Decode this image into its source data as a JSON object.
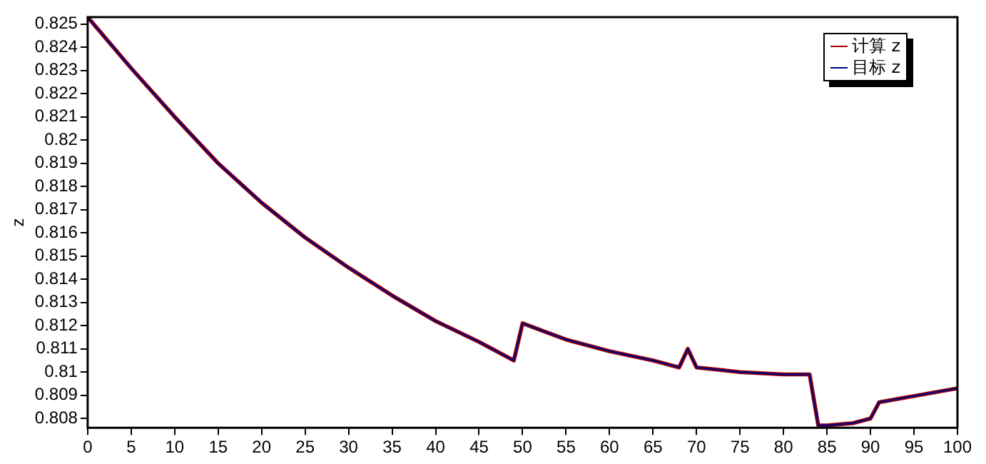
{
  "chart_data": {
    "type": "line",
    "ylabel": "z",
    "x": [
      0,
      5,
      10,
      15,
      20,
      25,
      30,
      35,
      40,
      45,
      49,
      50,
      55,
      60,
      65,
      68,
      69,
      70,
      75,
      80,
      83,
      84,
      85,
      88,
      90,
      91,
      100
    ],
    "series": [
      {
        "name": "计算 z",
        "color": "#a00000",
        "values": [
          0.8253,
          0.8231,
          0.821,
          0.819,
          0.8173,
          0.8158,
          0.8145,
          0.8133,
          0.8122,
          0.8113,
          0.8105,
          0.8121,
          0.8114,
          0.8109,
          0.8105,
          0.8102,
          0.811,
          0.8102,
          0.81,
          0.8099,
          0.8099,
          0.8077,
          0.8077,
          0.8078,
          0.808,
          0.8087,
          0.8093
        ]
      },
      {
        "name": "目标 z",
        "color": "#000080",
        "values": [
          0.8253,
          0.8231,
          0.821,
          0.819,
          0.8173,
          0.8158,
          0.8145,
          0.8133,
          0.8122,
          0.8113,
          0.8105,
          0.8121,
          0.8114,
          0.8109,
          0.8105,
          0.8102,
          0.811,
          0.8102,
          0.81,
          0.8099,
          0.8099,
          0.8077,
          0.8077,
          0.8078,
          0.808,
          0.8087,
          0.8093
        ]
      }
    ],
    "xlim": [
      0,
      100
    ],
    "xticks": [
      0,
      5,
      10,
      15,
      20,
      25,
      30,
      35,
      40,
      45,
      50,
      55,
      60,
      65,
      70,
      75,
      80,
      85,
      90,
      95,
      100
    ],
    "ylim": [
      0.8076,
      0.8253
    ],
    "yticks": [
      0.808,
      0.809,
      0.81,
      0.811,
      0.812,
      0.813,
      0.814,
      0.815,
      0.816,
      0.817,
      0.818,
      0.819,
      0.82,
      0.821,
      0.822,
      0.823,
      0.824,
      0.825
    ],
    "grid": false,
    "legend": "top right",
    "marker": "none",
    "line_style": "solid"
  }
}
